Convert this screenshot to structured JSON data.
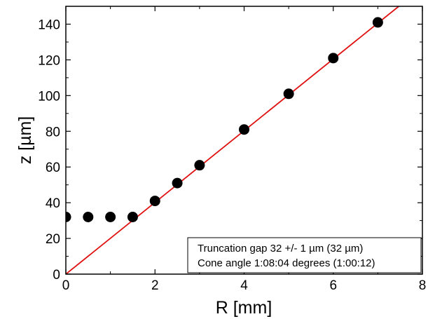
{
  "chart_data": {
    "type": "scatter",
    "xlabel": "R [mm]",
    "ylabel": "z [µm]",
    "xlim": [
      0,
      8
    ],
    "ylim": [
      0,
      150
    ],
    "x_ticks": [
      0,
      2,
      4,
      6,
      8
    ],
    "y_ticks": [
      0,
      20,
      40,
      60,
      80,
      100,
      120,
      140
    ],
    "x_tick_labels": [
      "0",
      "2",
      "4",
      "6",
      "8"
    ],
    "y_tick_labels": [
      "0",
      "20",
      "40",
      "60",
      "80",
      "100",
      "120",
      "140"
    ],
    "grid": false,
    "series": [
      {
        "kind": "points",
        "color": "#000000",
        "x": [
          0,
          0.5,
          1.0,
          1.5,
          2.0,
          2.5,
          3.0,
          4.0,
          5.0,
          6.0,
          7.0
        ],
        "y": [
          32,
          32,
          32,
          32,
          41,
          51,
          61,
          81,
          101,
          121,
          141
        ]
      },
      {
        "kind": "line",
        "color": "#e01010",
        "x": [
          0,
          7.47
        ],
        "y": [
          0,
          150
        ]
      }
    ],
    "annotation": {
      "placement": "bottom-right",
      "lines": [
        "Truncation gap 32 +/- 1 µm (32 µm)",
        "Cone angle 1:08:04 degrees (1:00:12)"
      ]
    }
  }
}
